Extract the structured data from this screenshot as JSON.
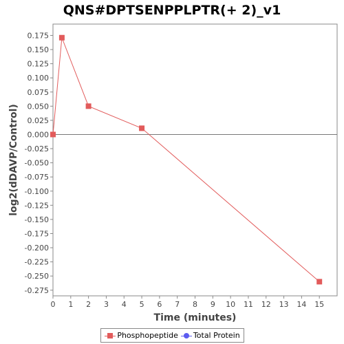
{
  "title": "QNS#DPTSENPPLPTR(+ 2)_v1",
  "colors": {
    "phosphopeptide": "#e25b5b",
    "total_protein": "#5b5bf0"
  },
  "chart_data": {
    "type": "line",
    "title": "QNS#DPTSENPPLPTR(+ 2)_v1",
    "xlabel": "Time (minutes)",
    "ylabel": "log2(dDAVP/Control)",
    "xlim": [
      0,
      16
    ],
    "ylim": [
      -0.285,
      0.195
    ],
    "xticks": [
      0,
      1,
      2,
      3,
      4,
      5,
      6,
      7,
      8,
      9,
      10,
      11,
      12,
      13,
      14,
      15
    ],
    "yticks": [
      "0.175",
      "0.150",
      "0.125",
      "0.100",
      "0.075",
      "0.050",
      "0.025",
      "0.000",
      "-0.025",
      "-0.050",
      "-0.075",
      "-0.100",
      "-0.125",
      "-0.150",
      "-0.175",
      "-0.200",
      "-0.225",
      "-0.250",
      "-0.275"
    ],
    "zero_line": true,
    "legend_position": "bottom",
    "series": [
      {
        "name": "Phosphopeptide",
        "marker": "square",
        "color": "#e25b5b",
        "x": [
          0,
          0.5,
          2,
          5,
          15
        ],
        "y": [
          0.0,
          0.171,
          0.05,
          0.011,
          -0.26
        ]
      },
      {
        "name": "Total Protein",
        "marker": "circle",
        "color": "#5b5bf0",
        "x": [],
        "y": []
      }
    ]
  }
}
